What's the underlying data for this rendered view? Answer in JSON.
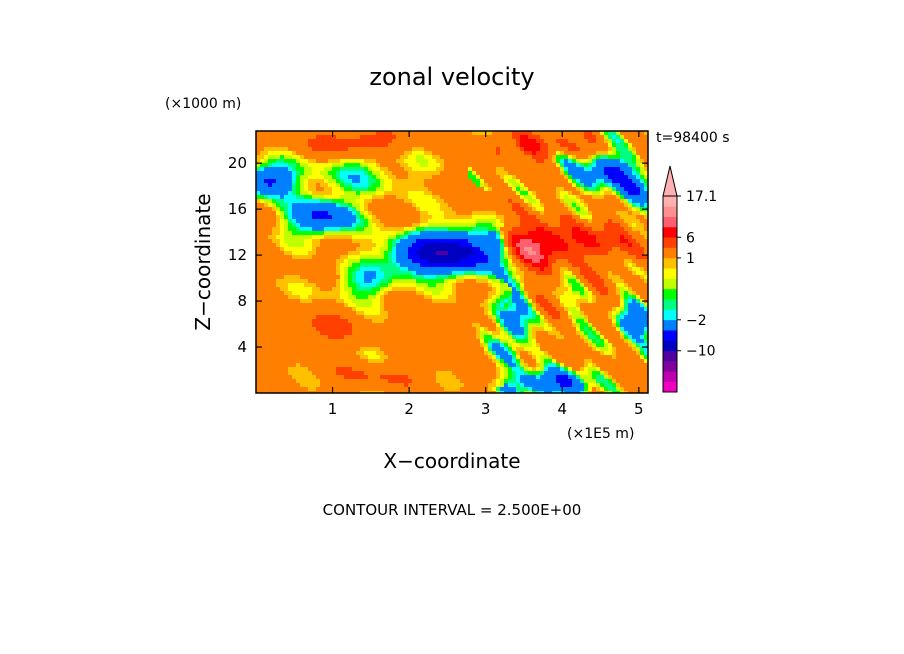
{
  "chart_data": {
    "type": "heatmap",
    "title": "zonal velocity",
    "xlabel": "X−coordinate",
    "ylabel": "Z−coordinate",
    "x_unit": "(×1E5 m)",
    "y_unit": "(×1000 m)",
    "time_label": "t=98400 s",
    "footer": "CONTOUR INTERVAL = 2.500E+00",
    "xlim": [
      0,
      5.12
    ],
    "ylim": [
      0,
      22.8
    ],
    "x_ticks": [
      1,
      2,
      3,
      4,
      5
    ],
    "y_ticks": [
      4,
      8,
      12,
      16,
      20
    ],
    "grid": false,
    "legend": "right",
    "colorbar": {
      "colors": [
        "#f000c0",
        "#c000b0",
        "#8000a0",
        "#5000a0",
        "#0000c0",
        "#0000ff",
        "#0080ff",
        "#00ffff",
        "#00ff80",
        "#00ff00",
        "#c0ff00",
        "#ffff00",
        "#ffc000",
        "#ff8000",
        "#ff4000",
        "#ff0000",
        "#ff6070",
        "#ff9090",
        "#ffb0b0"
      ],
      "levels": [
        -22.5,
        -17.5,
        -12.5,
        -10,
        -7.5,
        -5,
        -2,
        -1.5,
        -1,
        -0.5,
        0,
        0.5,
        1,
        3.5,
        6,
        8.5,
        11,
        13.5,
        17.1
      ],
      "tick_labels": [
        "17.1",
        "6",
        "1",
        "−2",
        "−10"
      ],
      "tick_values": [
        17.1,
        6,
        1,
        -2,
        -10
      ],
      "extend": "max"
    },
    "field_features": [
      {
        "x": 3.1,
        "z": 12.2,
        "value": -10
      },
      {
        "x": 2.6,
        "z": 13.0,
        "value": -7.5
      },
      {
        "x": 2.1,
        "z": 12.0,
        "value": -5
      },
      {
        "x": 0.8,
        "z": 15.5,
        "value": -5
      },
      {
        "x": 0.2,
        "z": 18.5,
        "value": -5
      },
      {
        "x": 1.3,
        "z": 21.5,
        "value": 3.5
      },
      {
        "x": 3.5,
        "z": 12.5,
        "value": 6
      },
      {
        "x": 4.2,
        "z": 13.0,
        "value": 3.5
      },
      {
        "x": 4.5,
        "z": 19.0,
        "value": -5
      },
      {
        "x": 3.8,
        "z": 1.0,
        "value": -5
      },
      {
        "x": 3.3,
        "z": 6.0,
        "value": -3
      },
      {
        "x": 1.4,
        "z": 9.5,
        "value": -1
      },
      {
        "x": 0.9,
        "z": 5.5,
        "value": 2
      },
      {
        "x": 4.9,
        "z": 6.0,
        "value": -4
      }
    ]
  }
}
